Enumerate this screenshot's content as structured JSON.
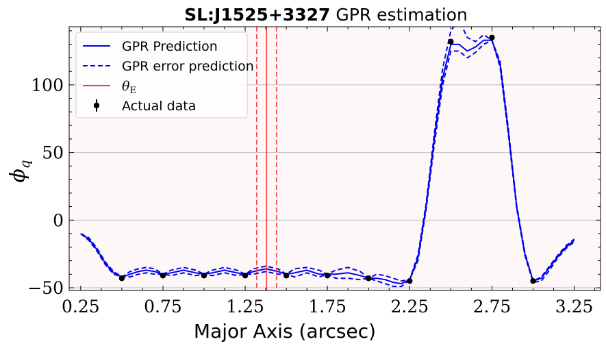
{
  "chart_data": {
    "type": "line",
    "title_bold": "SL:J1525+3327",
    "title_rest": "GPR estimation",
    "xlabel": "Major Axis (arcsec)",
    "ylabel": "ϕ",
    "ylabel_sub": "q",
    "xlim": [
      0.18,
      3.41
    ],
    "ylim": [
      -52,
      143
    ],
    "xticks": [
      0.25,
      0.75,
      1.25,
      1.75,
      2.25,
      2.75,
      3.25
    ],
    "xtick_labels": [
      "0.25",
      "0.75",
      "1.25",
      "1.75",
      "2.25",
      "2.75",
      "3.25"
    ],
    "yticks": [
      -50,
      0,
      50,
      100
    ],
    "ytick_labels": [
      "−50",
      "0",
      "50",
      "100"
    ],
    "grid": "y",
    "legend_position": "upper-left",
    "colors": {
      "prediction": "#0000ee",
      "error": "#0000ee",
      "theta": "#ff3b3b",
      "data": "#000000",
      "plot_bg": "#fdf8f7",
      "grid": "#bdbdbd"
    },
    "legend": [
      {
        "label": "GPR Prediction",
        "style": "solid-blue"
      },
      {
        "label": "GPR error prediction",
        "style": "dashed-blue"
      },
      {
        "label": "θ",
        "sub": "E",
        "style": "solid-red"
      },
      {
        "label": "Actual data",
        "style": "errorbar-black"
      }
    ],
    "series": [
      {
        "name": "GPR Prediction",
        "x": [
          0.25,
          0.3,
          0.35,
          0.4,
          0.45,
          0.5,
          0.55,
          0.6,
          0.65,
          0.7,
          0.75,
          0.8,
          0.875,
          0.95,
          1.0,
          1.05,
          1.125,
          1.2,
          1.25,
          1.3,
          1.375,
          1.45,
          1.5,
          1.55,
          1.625,
          1.7,
          1.75,
          1.8,
          1.875,
          1.95,
          2.0,
          2.05,
          2.1,
          2.15,
          2.2,
          2.25,
          2.3,
          2.35,
          2.4,
          2.45,
          2.5,
          2.55,
          2.6,
          2.65,
          2.7,
          2.75,
          2.8,
          2.85,
          2.9,
          2.95,
          3.0,
          3.05,
          3.1,
          3.15,
          3.2,
          3.25
        ],
        "y": [
          -10,
          -14,
          -22,
          -32,
          -39,
          -42,
          -40,
          -38,
          -37,
          -38,
          -40,
          -39,
          -37,
          -39,
          -40,
          -39,
          -37,
          -39,
          -40,
          -38,
          -36,
          -38,
          -40,
          -39,
          -37,
          -40,
          -40,
          -40,
          -39,
          -41,
          -43,
          -43,
          -44,
          -46,
          -47,
          -44,
          -28,
          10,
          60,
          105,
          130,
          130,
          125,
          128,
          133,
          133,
          115,
          65,
          10,
          -25,
          -45,
          -43,
          -35,
          -27,
          -20,
          -15
        ]
      },
      {
        "name": "GPR error prediction",
        "x": [
          0.25,
          0.3,
          0.35,
          0.4,
          0.45,
          0.5,
          0.55,
          0.6,
          0.65,
          0.7,
          0.75,
          0.8,
          0.875,
          0.95,
          1.0,
          1.05,
          1.125,
          1.2,
          1.25,
          1.3,
          1.375,
          1.45,
          1.5,
          1.55,
          1.625,
          1.7,
          1.75,
          1.8,
          1.875,
          1.95,
          2.0,
          2.05,
          2.1,
          2.15,
          2.2,
          2.25,
          2.3,
          2.35,
          2.4,
          2.45,
          2.5,
          2.55,
          2.6,
          2.65,
          2.7,
          2.75,
          2.8,
          2.85,
          2.9,
          2.95,
          3.0,
          3.05,
          3.1,
          3.15,
          3.2,
          3.25
        ],
        "y": [
          -10,
          -13,
          -21,
          -31,
          -38,
          -42,
          -38,
          -36,
          -35,
          -36,
          -40,
          -37,
          -35,
          -37,
          -40,
          -37,
          -35,
          -37,
          -40,
          -36,
          -34,
          -36,
          -40,
          -36,
          -35,
          -37,
          -40,
          -37,
          -35,
          -38,
          -43,
          -40,
          -41,
          -43,
          -45,
          -44,
          -26,
          12,
          64,
          112,
          140,
          148,
          135,
          132,
          137,
          133,
          117,
          67,
          11,
          -24,
          -45,
          -42,
          -34,
          -26,
          -19,
          -14
        ]
      },
      {
        "name": "GPR error prediction",
        "x": [
          0.25,
          0.3,
          0.35,
          0.4,
          0.45,
          0.5,
          0.55,
          0.6,
          0.65,
          0.7,
          0.75,
          0.8,
          0.875,
          0.95,
          1.0,
          1.05,
          1.125,
          1.2,
          1.25,
          1.3,
          1.375,
          1.45,
          1.5,
          1.55,
          1.625,
          1.7,
          1.75,
          1.8,
          1.875,
          1.95,
          2.0,
          2.05,
          2.1,
          2.15,
          2.2,
          2.25,
          2.3,
          2.35,
          2.4,
          2.45,
          2.5,
          2.55,
          2.6,
          2.65,
          2.7,
          2.75,
          2.8,
          2.85,
          2.9,
          2.95,
          3.0,
          3.05,
          3.1,
          3.15,
          3.2,
          3.25
        ],
        "y": [
          -10,
          -15,
          -23,
          -33,
          -40,
          -42,
          -42,
          -40,
          -39,
          -40,
          -40,
          -41,
          -39,
          -41,
          -40,
          -41,
          -39,
          -41,
          -40,
          -40,
          -38,
          -40,
          -40,
          -42,
          -39,
          -42,
          -40,
          -43,
          -43,
          -44,
          -43,
          -45,
          -47,
          -49,
          -49,
          -44,
          -30,
          8,
          56,
          100,
          125,
          125,
          120,
          124,
          130,
          133,
          113,
          63,
          9,
          -26,
          -46,
          -45,
          -37,
          -28,
          -21,
          -16
        ]
      }
    ],
    "theta_e": {
      "value": 1.38,
      "lower": 1.32,
      "upper": 1.44
    },
    "actual_data": {
      "x": [
        0.5,
        0.75,
        1.0,
        1.25,
        1.5,
        1.75,
        2.0,
        2.25,
        2.5,
        2.75,
        3.0
      ],
      "y": [
        -43,
        -41,
        -41,
        -41,
        -41,
        -41,
        -43,
        -45,
        132,
        135,
        -45
      ]
    }
  }
}
